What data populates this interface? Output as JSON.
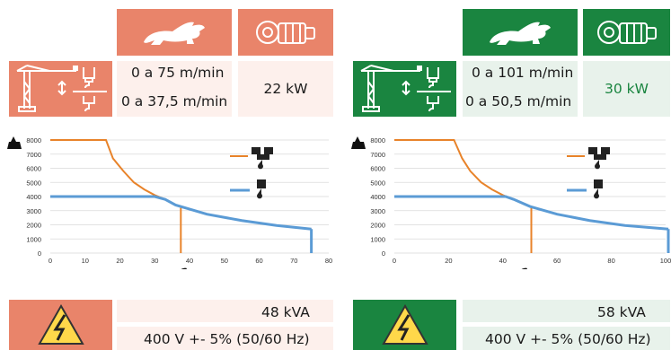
{
  "colors": {
    "left_accent": "#E9846A",
    "left_light": "#FDF0EC",
    "right_accent": "#1A8540",
    "right_light": "#E8F2EB",
    "hook_line": "#E8832A",
    "trolley_line": "#5B9BD5"
  },
  "icons": {
    "speed": "rabbit-icon",
    "motor": "gear-motor-icon",
    "crane": "tower-crane-icon",
    "hook_double": "double-reeving-hook-icon",
    "hook_single": "single-reeving-hook-icon",
    "high_voltage": "high-voltage-warning-icon",
    "load": "load-weight-icon"
  },
  "panels": [
    {
      "speed_high": "0 a 75 m/min",
      "speed_low": "0 a 37,5 m/min",
      "power": "22 kW",
      "apparent_power": "48 kVA",
      "voltage": "400 V +- 5% (50/60 Hz)"
    },
    {
      "speed_high": "0 a 101 m/min",
      "speed_low": "0 a 50,5 m/min",
      "power": "30 kW",
      "apparent_power": "58 kVA",
      "voltage": "400 V +- 5% (50/60 Hz)"
    }
  ],
  "chart_data": [
    {
      "type": "line",
      "xlabel": "m/ min",
      "ylabel": "",
      "xlim": [
        0,
        80
      ],
      "ylim": [
        0,
        8000
      ],
      "xticks": [
        "0",
        "10",
        "20",
        "30",
        "40",
        "50",
        "60",
        "70",
        "80"
      ],
      "yticks": [
        "0",
        "1000",
        "2000",
        "3000",
        "4000",
        "5000",
        "6000",
        "7000",
        "8000"
      ],
      "grid": true,
      "legend": "top-right, hook icons",
      "series": [
        {
          "x": [
            0,
            16,
            18,
            21,
            24,
            27,
            30,
            33,
            36,
            45,
            55,
            65,
            75
          ],
          "y": [
            8000,
            8000,
            6700,
            5800,
            5000,
            4500,
            4100,
            3800,
            3400,
            2750,
            2300,
            1950,
            1700
          ],
          "vline_x": 37.5
        },
        {
          "x": [
            0,
            30,
            33,
            36,
            45,
            55,
            65,
            75
          ],
          "y": [
            4000,
            4000,
            3800,
            3400,
            2750,
            2300,
            1950,
            1700
          ],
          "drop_x": 75
        }
      ]
    },
    {
      "type": "line",
      "xlabel": "m/ min",
      "ylabel": "",
      "xlim": [
        0,
        100
      ],
      "ylim": [
        0,
        8000
      ],
      "xticks": [
        "0",
        "20",
        "40",
        "60",
        "80",
        "100"
      ],
      "yticks": [
        "0",
        "1000",
        "2000",
        "3000",
        "4000",
        "5000",
        "6000",
        "7000",
        "8000"
      ],
      "grid": true,
      "legend": "top-right, hook icons",
      "series": [
        {
          "x": [
            0,
            22,
            25,
            28,
            32,
            36,
            40,
            44,
            50,
            60,
            72,
            85,
            101
          ],
          "y": [
            8000,
            8000,
            6700,
            5800,
            5000,
            4500,
            4100,
            3800,
            3300,
            2750,
            2300,
            1950,
            1700
          ],
          "vline_x": 50.5
        },
        {
          "x": [
            0,
            41,
            44,
            50,
            60,
            72,
            85,
            101
          ],
          "y": [
            4000,
            4000,
            3800,
            3300,
            2750,
            2300,
            1950,
            1700
          ],
          "drop_x": 101
        }
      ]
    }
  ]
}
